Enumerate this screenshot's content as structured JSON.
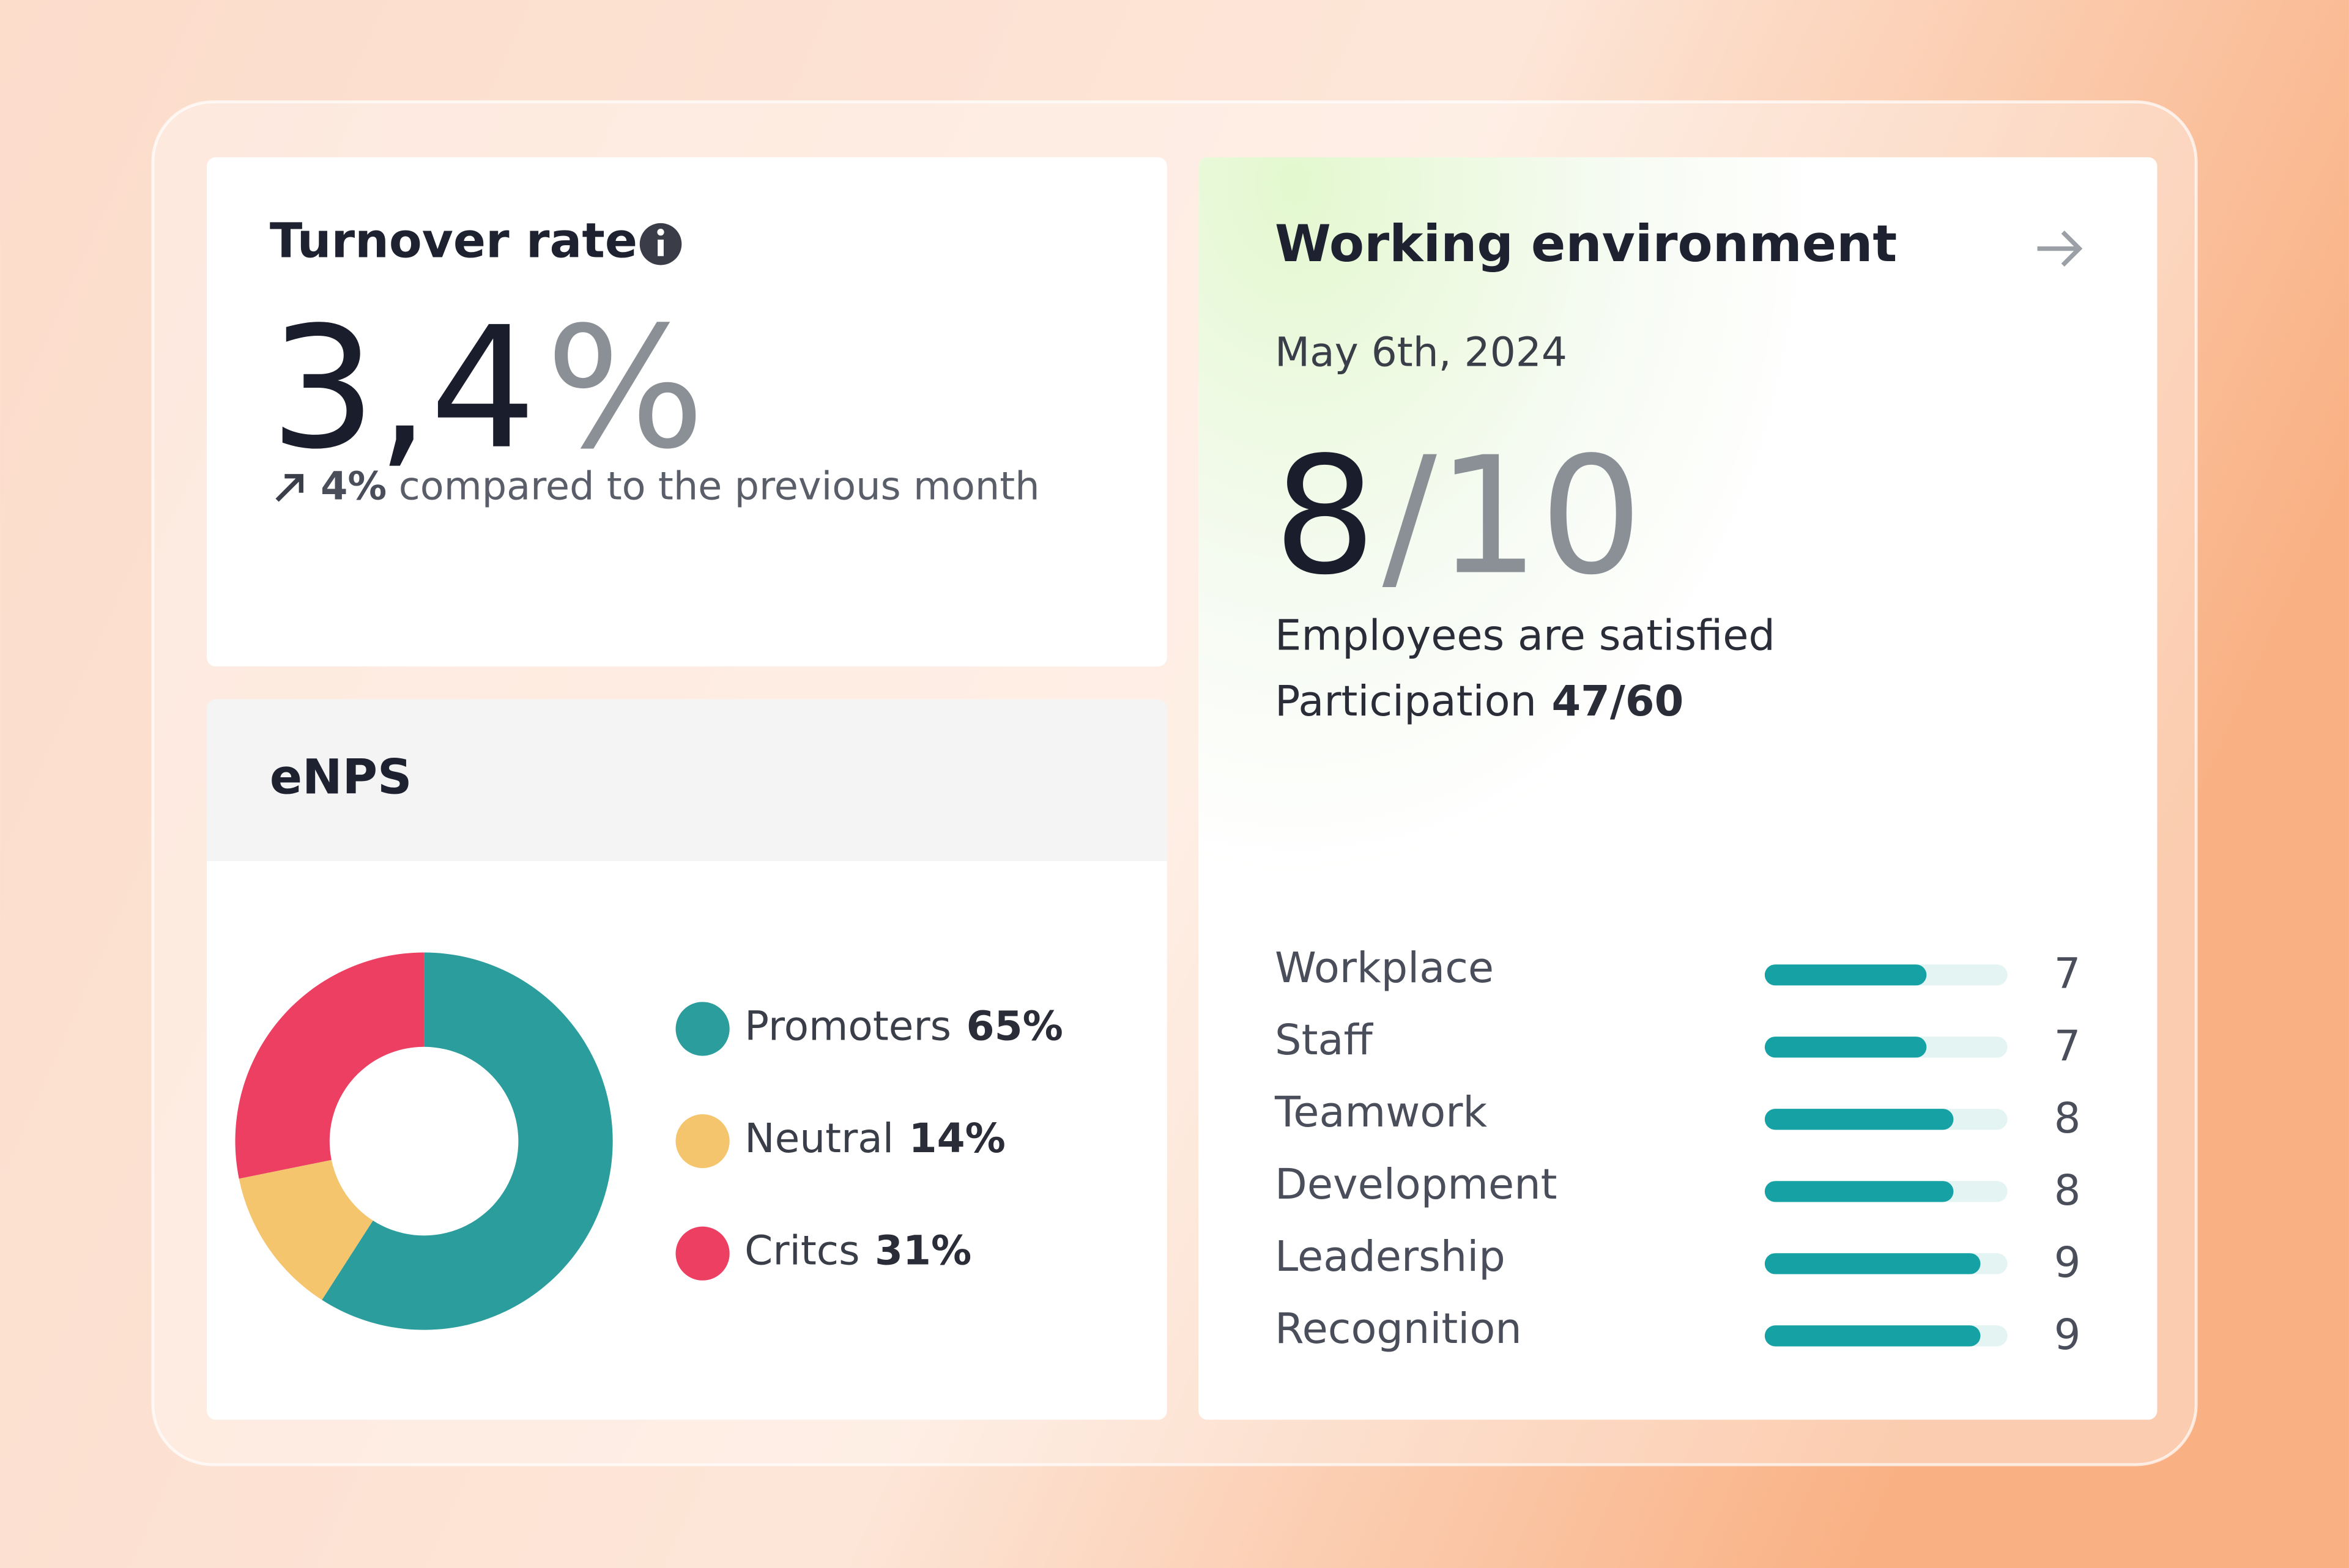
{
  "turnover": {
    "title": "Turnover rate",
    "value": "3,4",
    "unit": "%",
    "change": "4%",
    "change_text": "compared to the previous month"
  },
  "working_environment": {
    "title": "Working environment",
    "date": "May 6th, 2024",
    "score": "8",
    "score_max": "/10",
    "summary": "Employees are satisfied",
    "participation_label": "Participation",
    "participation_value": "47/60"
  },
  "chart_data": [
    {
      "type": "pie",
      "title": "eNPS",
      "donut": true,
      "categories": [
        "Promoters",
        "Neutral",
        "Critcs"
      ],
      "values": [
        65,
        14,
        31
      ],
      "value_labels": [
        "65%",
        "14%",
        "31%"
      ],
      "colors": [
        "#2a9d9c",
        "#f5c56e",
        "#ec3f62"
      ]
    },
    {
      "type": "hbar",
      "categories": [
        "Workplace",
        "Staff",
        "Teamwork",
        "Development",
        "Leadership",
        "Recognition"
      ],
      "values": [
        7,
        7,
        8,
        8,
        9,
        9
      ],
      "xlim": [
        1,
        10
      ],
      "color": "#16a2a5",
      "track_color": "#e3f4f3"
    }
  ]
}
